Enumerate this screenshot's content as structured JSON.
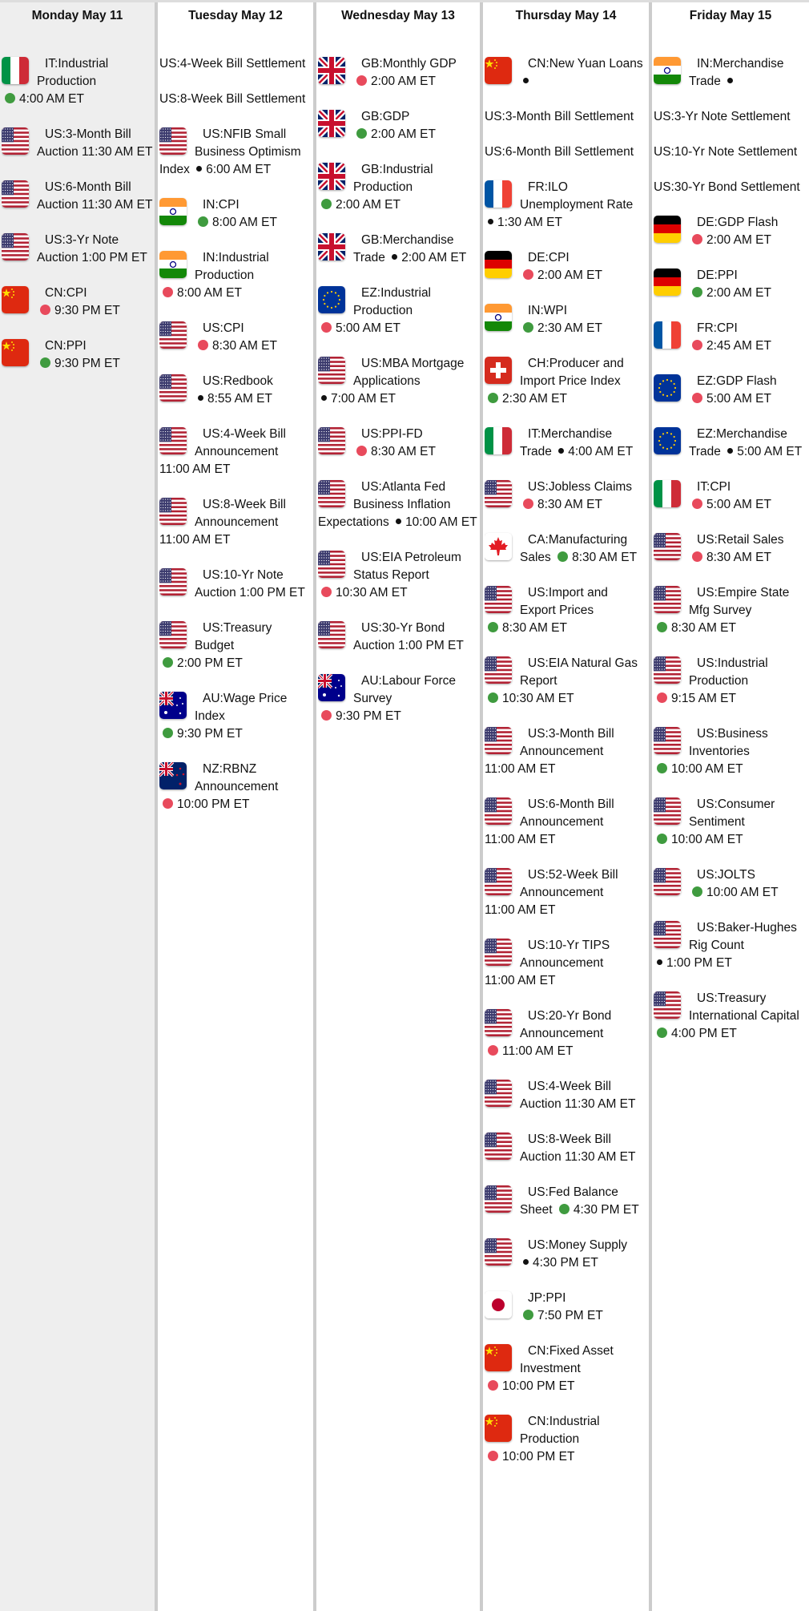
{
  "colors": {
    "green": "#3f9b3f",
    "red": "#e84a5c",
    "black": "#111111",
    "today_bg": "#eeeeee",
    "divider": "#cccccc"
  },
  "days": [
    {
      "label": "Monday May 11",
      "today": true,
      "events": [
        {
          "flag": "IT",
          "title": "IT:Industrial Production",
          "impact": "green",
          "time": "4:00 AM ET"
        },
        {
          "flag": "US",
          "title": "US:3-Month Bill Auction",
          "impact": "",
          "time": "11:30 AM ET"
        },
        {
          "flag": "US",
          "title": "US:6-Month Bill Auction",
          "impact": "",
          "time": "11:30 AM ET"
        },
        {
          "flag": "US",
          "title": "US:3-Yr Note Auction",
          "impact": "",
          "time": "1:00 PM ET"
        },
        {
          "flag": "CN",
          "title": "CN:CPI",
          "impact": "red",
          "time": "9:30 PM ET"
        },
        {
          "flag": "CN",
          "title": "CN:PPI",
          "impact": "green",
          "time": "9:30 PM ET"
        }
      ]
    },
    {
      "label": "Tuesday May 12",
      "events": [
        {
          "flag": "",
          "title": "US:4-Week Bill Settlement",
          "impact": "",
          "time": ""
        },
        {
          "flag": "",
          "title": "US:8-Week Bill Settlement",
          "impact": "",
          "time": ""
        },
        {
          "flag": "US",
          "title": "US:NFIB Small Business Optimism Index",
          "impact": "black",
          "time": "6:00 AM ET"
        },
        {
          "flag": "IN",
          "title": "IN:CPI",
          "impact": "green",
          "time": "8:00 AM ET"
        },
        {
          "flag": "IN",
          "title": "IN:Industrial Production",
          "impact": "red",
          "time": "8:00 AM ET"
        },
        {
          "flag": "US",
          "title": "US:CPI",
          "impact": "red",
          "time": "8:30 AM ET"
        },
        {
          "flag": "US",
          "title": "US:Redbook",
          "impact": "black",
          "time": "8:55 AM ET"
        },
        {
          "flag": "US",
          "title": "US:4-Week Bill Announcement",
          "impact": "",
          "time": "11:00 AM ET"
        },
        {
          "flag": "US",
          "title": "US:8-Week Bill Announcement",
          "impact": "",
          "time": "11:00 AM ET"
        },
        {
          "flag": "US",
          "title": "US:10-Yr Note Auction",
          "impact": "",
          "time": "1:00 PM ET"
        },
        {
          "flag": "US",
          "title": "US:Treasury Budget",
          "impact": "green",
          "time": "2:00 PM ET"
        },
        {
          "flag": "AU",
          "title": "AU:Wage Price Index",
          "impact": "green",
          "time": "9:30 PM ET"
        },
        {
          "flag": "NZ",
          "title": "NZ:RBNZ Announcement",
          "impact": "red",
          "time": "10:00 PM ET"
        }
      ]
    },
    {
      "label": "Wednesday May 13",
      "events": [
        {
          "flag": "GB",
          "title": "GB:Monthly GDP",
          "impact": "red",
          "time": "2:00 AM ET"
        },
        {
          "flag": "GB",
          "title": "GB:GDP",
          "impact": "green",
          "time": "2:00 AM ET"
        },
        {
          "flag": "GB",
          "title": "GB:Industrial Production",
          "impact": "green",
          "time": "2:00 AM ET"
        },
        {
          "flag": "GB",
          "title": "GB:Merchandise Trade",
          "impact": "black",
          "time": "2:00 AM ET"
        },
        {
          "flag": "EZ",
          "title": "EZ:Industrial Production",
          "impact": "red",
          "time": "5:00 AM ET"
        },
        {
          "flag": "US",
          "title": "US:MBA Mortgage Applications",
          "impact": "black",
          "time": "7:00 AM ET"
        },
        {
          "flag": "US",
          "title": "US:PPI-FD",
          "impact": "red",
          "time": "8:30 AM ET"
        },
        {
          "flag": "US",
          "title": "US:Atlanta Fed Business Inflation Expectations",
          "impact": "black",
          "time": "10:00 AM ET"
        },
        {
          "flag": "US",
          "title": "US:EIA Petroleum Status Report",
          "impact": "red",
          "time": "10:30 AM ET"
        },
        {
          "flag": "US",
          "title": "US:30-Yr Bond Auction",
          "impact": "",
          "time": "1:00 PM ET"
        },
        {
          "flag": "AU",
          "title": "AU:Labour Force Survey",
          "impact": "red",
          "time": "9:30 PM ET"
        }
      ]
    },
    {
      "label": "Thursday May 14",
      "events": [
        {
          "flag": "CN",
          "title": "CN:New Yuan Loans",
          "impact": "black",
          "time": ""
        },
        {
          "flag": "",
          "title": "US:3-Month Bill Settlement",
          "impact": "",
          "time": ""
        },
        {
          "flag": "",
          "title": "US:6-Month Bill Settlement",
          "impact": "",
          "time": ""
        },
        {
          "flag": "FR",
          "title": "FR:ILO Unemployment Rate",
          "impact": "black",
          "time": "1:30 AM ET"
        },
        {
          "flag": "DE",
          "title": "DE:CPI",
          "impact": "red",
          "time": "2:00 AM ET"
        },
        {
          "flag": "IN",
          "title": "IN:WPI",
          "impact": "green",
          "time": "2:30 AM ET"
        },
        {
          "flag": "CH",
          "title": "CH:Producer and Import Price Index",
          "impact": "green",
          "time": "2:30 AM ET"
        },
        {
          "flag": "IT",
          "title": "IT:Merchandise Trade",
          "impact": "black",
          "time": "4:00 AM ET"
        },
        {
          "flag": "US",
          "title": "US:Jobless Claims",
          "impact": "red",
          "time": "8:30 AM ET"
        },
        {
          "flag": "CA",
          "title": "CA:Manufacturing Sales",
          "impact": "green",
          "time": "8:30 AM ET"
        },
        {
          "flag": "US",
          "title": "US:Import and Export Prices",
          "impact": "green",
          "time": "8:30 AM ET"
        },
        {
          "flag": "US",
          "title": "US:EIA Natural Gas Report",
          "impact": "green",
          "time": "10:30 AM ET"
        },
        {
          "flag": "US",
          "title": "US:3-Month Bill Announcement",
          "impact": "",
          "time": "11:00 AM ET"
        },
        {
          "flag": "US",
          "title": "US:6-Month Bill Announcement",
          "impact": "",
          "time": "11:00 AM ET"
        },
        {
          "flag": "US",
          "title": "US:52-Week Bill Announcement",
          "impact": "",
          "time": "11:00 AM ET"
        },
        {
          "flag": "US",
          "title": "US:10-Yr TIPS Announcement",
          "impact": "",
          "time": "11:00 AM ET"
        },
        {
          "flag": "US",
          "title": "US:20-Yr Bond Announcement",
          "impact": "red",
          "time": "11:00 AM ET"
        },
        {
          "flag": "US",
          "title": "US:4-Week Bill Auction",
          "impact": "",
          "time": "11:30 AM ET"
        },
        {
          "flag": "US",
          "title": "US:8-Week Bill Auction",
          "impact": "",
          "time": "11:30 AM ET"
        },
        {
          "flag": "US",
          "title": "US:Fed Balance Sheet",
          "impact": "green",
          "time": "4:30 PM ET"
        },
        {
          "flag": "US",
          "title": "US:Money Supply",
          "impact": "black",
          "time": "4:30 PM ET"
        },
        {
          "flag": "JP",
          "title": "JP:PPI",
          "impact": "green",
          "time": "7:50 PM ET"
        },
        {
          "flag": "CN",
          "title": "CN:Fixed Asset Investment",
          "impact": "red",
          "time": "10:00 PM ET"
        },
        {
          "flag": "CN",
          "title": "CN:Industrial Production",
          "impact": "red",
          "time": "10:00 PM ET"
        }
      ]
    },
    {
      "label": "Friday May 15",
      "events": [
        {
          "flag": "IN",
          "title": "IN:Merchandise Trade",
          "impact": "black",
          "time": ""
        },
        {
          "flag": "",
          "title": "US:3-Yr Note Settlement",
          "impact": "",
          "time": ""
        },
        {
          "flag": "",
          "title": "US:10-Yr Note Settlement",
          "impact": "",
          "time": ""
        },
        {
          "flag": "",
          "title": "US:30-Yr Bond Settlement",
          "impact": "",
          "time": ""
        },
        {
          "flag": "DE",
          "title": "DE:GDP Flash",
          "impact": "red",
          "time": "2:00 AM ET"
        },
        {
          "flag": "DE",
          "title": "DE:PPI",
          "impact": "green",
          "time": "2:00 AM ET"
        },
        {
          "flag": "FR",
          "title": "FR:CPI",
          "impact": "red",
          "time": "2:45 AM ET"
        },
        {
          "flag": "EZ",
          "title": "EZ:GDP Flash",
          "impact": "red",
          "time": "5:00 AM ET"
        },
        {
          "flag": "EZ",
          "title": "EZ:Merchandise Trade",
          "impact": "black",
          "time": "5:00 AM ET"
        },
        {
          "flag": "IT",
          "title": "IT:CPI",
          "impact": "red",
          "time": "5:00 AM ET"
        },
        {
          "flag": "US",
          "title": "US:Retail Sales",
          "impact": "red",
          "time": "8:30 AM ET"
        },
        {
          "flag": "US",
          "title": "US:Empire State Mfg Survey",
          "impact": "green",
          "time": "8:30 AM ET"
        },
        {
          "flag": "US",
          "title": "US:Industrial Production",
          "impact": "red",
          "time": "9:15 AM ET"
        },
        {
          "flag": "US",
          "title": "US:Business Inventories",
          "impact": "green",
          "time": "10:00 AM ET"
        },
        {
          "flag": "US",
          "title": "US:Consumer Sentiment",
          "impact": "green",
          "time": "10:00 AM ET"
        },
        {
          "flag": "US",
          "title": "US:JOLTS",
          "impact": "green",
          "time": "10:00 AM ET"
        },
        {
          "flag": "US",
          "title": "US:Baker-Hughes Rig Count",
          "impact": "black",
          "time": "1:00 PM ET"
        },
        {
          "flag": "US",
          "title": "US:Treasury International Capital",
          "impact": "green",
          "time": "4:00 PM ET"
        }
      ]
    }
  ]
}
